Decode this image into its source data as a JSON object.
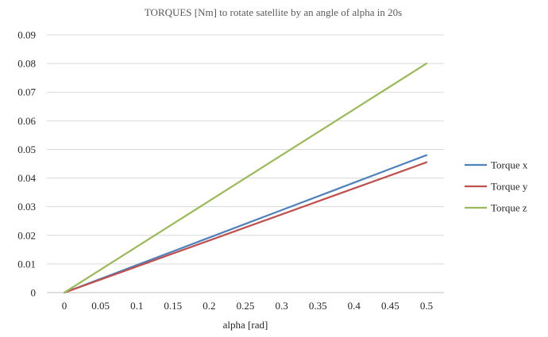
{
  "chart_data": {
    "type": "line",
    "title": "TORQUES [Nm] to rotate satellite by an angle of alpha in 20s",
    "xlabel": "alpha [rad]",
    "ylabel": "",
    "x": [
      0,
      0.05,
      0.1,
      0.15,
      0.2,
      0.25,
      0.3,
      0.35,
      0.4,
      0.45,
      0.5
    ],
    "x_tick_labels": [
      "0",
      "0.05",
      "0.1",
      "0.15",
      "0.2",
      "0.25",
      "0.3",
      "0.35",
      "0.4",
      "0.45",
      "0.5"
    ],
    "y_tick_labels": [
      "0",
      "0.01",
      "0.02",
      "0.03",
      "0.04",
      "0.05",
      "0.06",
      "0.07",
      "0.08",
      "0.09"
    ],
    "ylim": [
      0,
      0.09
    ],
    "grid": true,
    "legend_position": "right",
    "series": [
      {
        "name": "Torque x",
        "color": "#4f81bd",
        "values": [
          0,
          0.0048,
          0.0096,
          0.0144,
          0.0192,
          0.024,
          0.0288,
          0.0336,
          0.0384,
          0.0432,
          0.048
        ]
      },
      {
        "name": "Torque y",
        "color": "#c0504d",
        "values": [
          0,
          0.00455,
          0.0091,
          0.01365,
          0.0182,
          0.02275,
          0.0273,
          0.03185,
          0.0364,
          0.04095,
          0.0455
        ]
      },
      {
        "name": "Torque z",
        "color": "#9bbb59",
        "values": [
          0,
          0.008,
          0.016,
          0.024,
          0.032,
          0.04,
          0.048,
          0.056,
          0.064,
          0.072,
          0.08
        ]
      }
    ]
  }
}
